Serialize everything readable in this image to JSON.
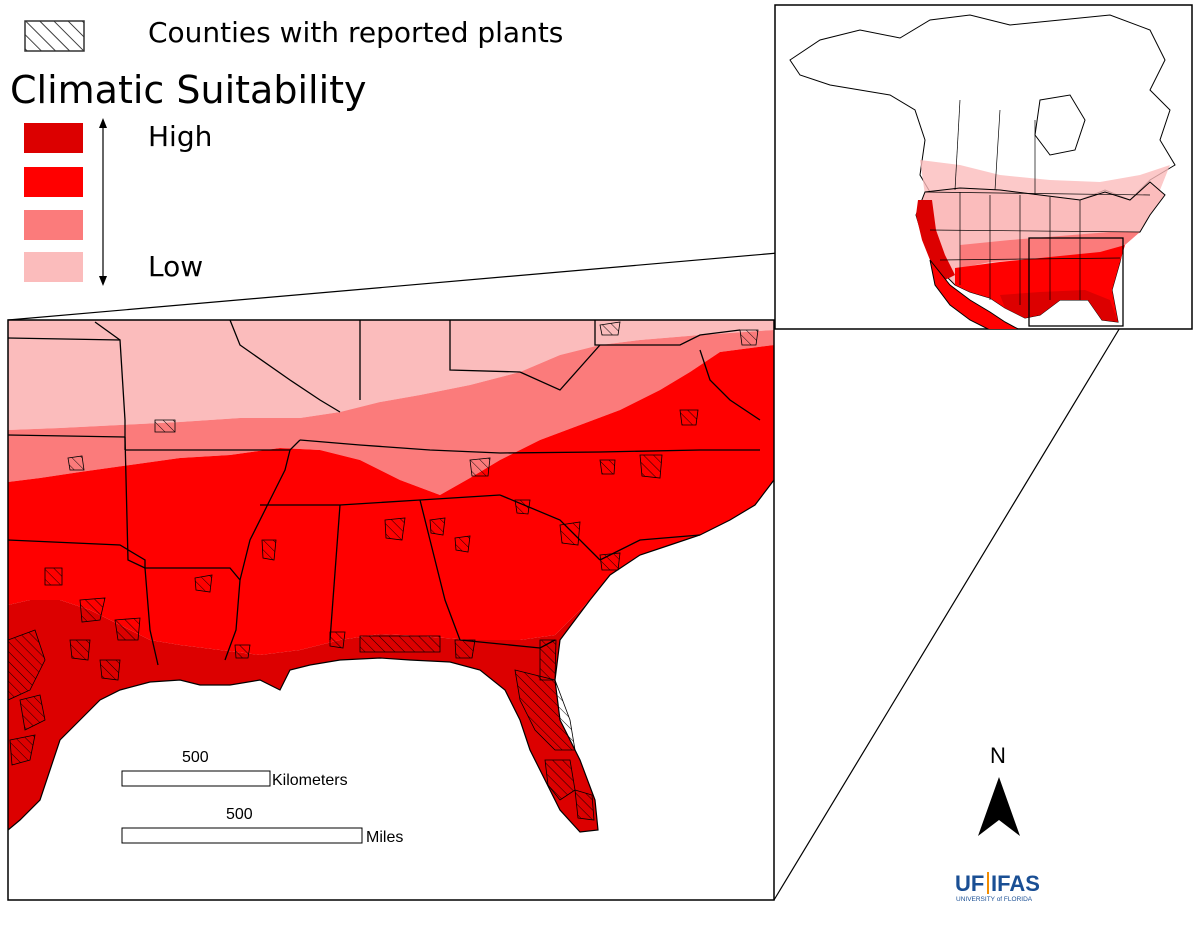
{
  "legend": {
    "hatch_label": "Counties with reported plants",
    "title": "Climatic Suitability",
    "classes": [
      {
        "label": "High",
        "color": "#dc0000"
      },
      {
        "label": "",
        "color": "#ff0000"
      },
      {
        "label": "",
        "color": "#fb7b7b"
      },
      {
        "label": "Low",
        "color": "#fbbcbc"
      }
    ],
    "high_label": "High",
    "low_label": "Low",
    "hatch_color": "#000000"
  },
  "scale_bars": {
    "km_value": "500",
    "km_unit": "Kilometers",
    "mi_value": "500",
    "mi_unit": "Miles"
  },
  "north_arrow": {
    "label": "N"
  },
  "logo": {
    "uf": "UF",
    "ifas": "IFAS",
    "sub": "UNIVERSITY of FLORIDA",
    "color": "#1a4f94"
  },
  "colors": {
    "high": "#dc0000",
    "medium_high": "#ff0000",
    "medium_low": "#fb7b7b",
    "low": "#fbbcbc",
    "outline": "#000000",
    "water": "#ffffff"
  }
}
